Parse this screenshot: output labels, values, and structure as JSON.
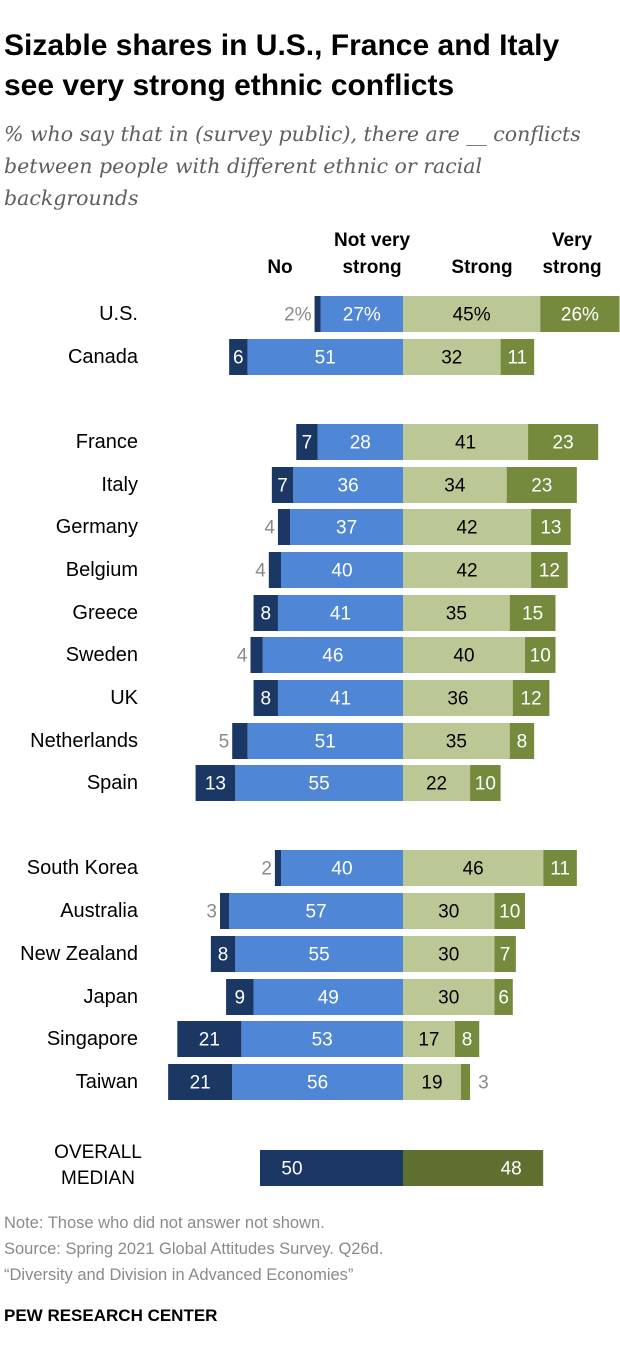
{
  "title": "Sizable shares in U.S., France and Italy see very strong ethnic conflicts",
  "subtitle": "% who say that in (survey public), there are __ conflicts between people with different ethnic or racial backgrounds",
  "columns": {
    "no": "No",
    "not_very_strong_1": "Not very",
    "not_very_strong_2": "strong",
    "strong": "Strong",
    "very_strong_1": "Very",
    "very_strong_2": "strong"
  },
  "median_label_1": "OVERALL",
  "median_label_2": "MEDIAN",
  "notes": {
    "note": "Note: Those who did not answer not shown.",
    "source": "Source: Spring 2021 Global Attitudes Survey. Q26d.",
    "report": "“Diversity and Division in Advanced Economies”"
  },
  "footer": "PEW RESEARCH CENTER",
  "colors": {
    "no": "#1b3764",
    "not_very_strong": "#4f86d6",
    "strong": "#bbc895",
    "very_strong": "#758a3d",
    "median_left": "#1b3764",
    "median_right": "#5f6f30",
    "outside_label": "#8a8a8a"
  },
  "chart_data": {
    "type": "bar",
    "orientation": "horizontal-diverging",
    "series_names": [
      "No",
      "Not very strong",
      "Strong",
      "Very strong"
    ],
    "rows": [
      {
        "label": "U.S.",
        "no": 2,
        "not_very_strong": 27,
        "strong": 45,
        "very_strong": 26,
        "percent_signs": true
      },
      {
        "label": "Canada",
        "no": 6,
        "not_very_strong": 51,
        "strong": 32,
        "very_strong": 11
      },
      {
        "label": "France",
        "no": 7,
        "not_very_strong": 28,
        "strong": 41,
        "very_strong": 23
      },
      {
        "label": "Italy",
        "no": 7,
        "not_very_strong": 36,
        "strong": 34,
        "very_strong": 23
      },
      {
        "label": "Germany",
        "no": 4,
        "not_very_strong": 37,
        "strong": 42,
        "very_strong": 13
      },
      {
        "label": "Belgium",
        "no": 4,
        "not_very_strong": 40,
        "strong": 42,
        "very_strong": 12
      },
      {
        "label": "Greece",
        "no": 8,
        "not_very_strong": 41,
        "strong": 35,
        "very_strong": 15
      },
      {
        "label": "Sweden",
        "no": 4,
        "not_very_strong": 46,
        "strong": 40,
        "very_strong": 10
      },
      {
        "label": "UK",
        "no": 8,
        "not_very_strong": 41,
        "strong": 36,
        "very_strong": 12
      },
      {
        "label": "Netherlands",
        "no": 5,
        "not_very_strong": 51,
        "strong": 35,
        "very_strong": 8
      },
      {
        "label": "Spain",
        "no": 13,
        "not_very_strong": 55,
        "strong": 22,
        "very_strong": 10
      },
      {
        "label": "South Korea",
        "no": 2,
        "not_very_strong": 40,
        "strong": 46,
        "very_strong": 11
      },
      {
        "label": "Australia",
        "no": 3,
        "not_very_strong": 57,
        "strong": 30,
        "very_strong": 10
      },
      {
        "label": "New Zealand",
        "no": 8,
        "not_very_strong": 55,
        "strong": 30,
        "very_strong": 7
      },
      {
        "label": "Japan",
        "no": 9,
        "not_very_strong": 49,
        "strong": 30,
        "very_strong": 6
      },
      {
        "label": "Singapore",
        "no": 21,
        "not_very_strong": 53,
        "strong": 17,
        "very_strong": 8
      },
      {
        "label": "Taiwan",
        "no": 21,
        "not_very_strong": 56,
        "strong": 19,
        "very_strong": 3
      }
    ],
    "median": {
      "left": 50,
      "right": 48
    }
  }
}
